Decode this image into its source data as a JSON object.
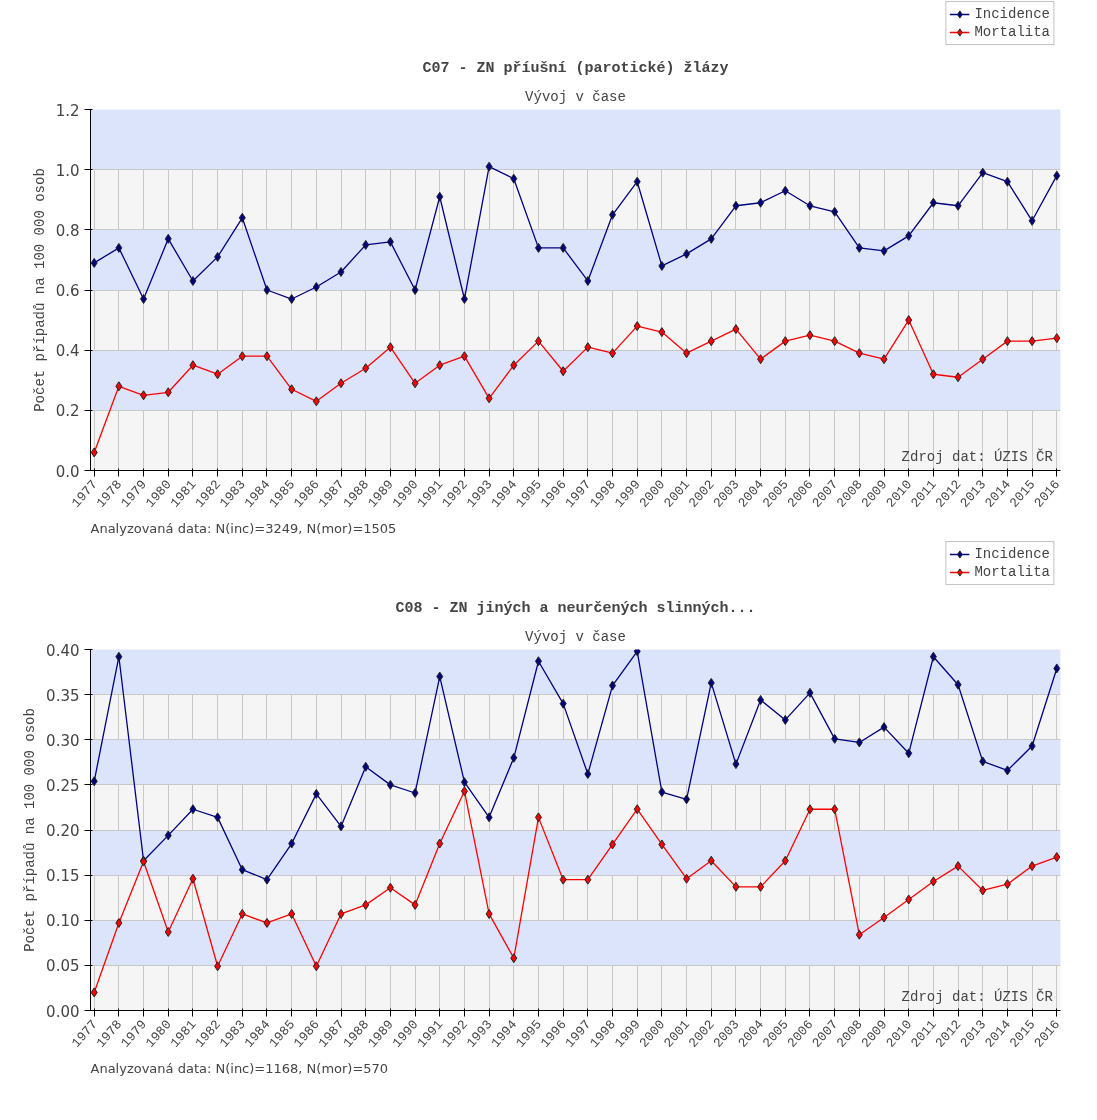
{
  "chart_data": [
    {
      "type": "line",
      "title": "C07 - ZN příušní (parotické) žlázy",
      "subtitle": "Vývoj v čase",
      "ylabel": "Počet případů na 100 000 osob",
      "categories": [
        "1977",
        "1978",
        "1979",
        "1980",
        "1981",
        "1982",
        "1983",
        "1984",
        "1985",
        "1986",
        "1987",
        "1988",
        "1989",
        "1990",
        "1991",
        "1992",
        "1993",
        "1994",
        "1995",
        "1996",
        "1997",
        "1998",
        "1999",
        "2000",
        "2001",
        "2002",
        "2003",
        "2004",
        "2005",
        "2006",
        "2007",
        "2008",
        "2009",
        "2010",
        "2011",
        "2012",
        "2013",
        "2014",
        "2015",
        "2016"
      ],
      "series": [
        {
          "name": "Incidence",
          "color": "#000080",
          "values": [
            0.69,
            0.74,
            0.57,
            0.77,
            0.63,
            0.71,
            0.84,
            0.6,
            0.57,
            0.61,
            0.66,
            0.75,
            0.76,
            0.6,
            0.91,
            0.57,
            1.01,
            0.97,
            0.74,
            0.74,
            0.63,
            0.85,
            0.96,
            0.68,
            0.72,
            0.77,
            0.88,
            0.89,
            0.93,
            0.88,
            0.86,
            0.74,
            0.73,
            0.78,
            0.89,
            0.88,
            0.99,
            0.96,
            0.83,
            0.98
          ]
        },
        {
          "name": "Mortalita",
          "color": "#ff0000",
          "values": [
            0.06,
            0.28,
            0.25,
            0.26,
            0.35,
            0.32,
            0.38,
            0.38,
            0.27,
            0.23,
            0.29,
            0.34,
            0.41,
            0.29,
            0.35,
            0.38,
            0.24,
            0.35,
            0.43,
            0.33,
            0.41,
            0.39,
            0.48,
            0.46,
            0.39,
            0.43,
            0.47,
            0.37,
            0.43,
            0.45,
            0.43,
            0.39,
            0.37,
            0.5,
            0.32,
            0.31,
            0.37,
            0.43,
            0.43,
            0.44
          ]
        }
      ],
      "ylim": [
        0,
        1.2
      ],
      "yticks": [
        {
          "value": 0,
          "label": "0.0"
        },
        0.2,
        0.4,
        0.6,
        0.8,
        {
          "value": 1,
          "label": "1.0"
        },
        1.2
      ],
      "grid": true,
      "legend": "top right",
      "marker": "diamond",
      "line_style": "solid",
      "annotations": [
        "Zdroj dat: ÚZIS ČR",
        "Analyzovaná data: N(inc)=3249, N(mor)=1505"
      ]
    },
    {
      "type": "line",
      "title": "C08 - ZN jiných a neurčených slinných...",
      "subtitle": "Vývoj v čase",
      "ylabel": "Počet případů na 100 000 osob",
      "categories": [
        "1977",
        "1978",
        "1979",
        "1980",
        "1981",
        "1982",
        "1983",
        "1984",
        "1985",
        "1986",
        "1987",
        "1988",
        "1989",
        "1990",
        "1991",
        "1992",
        "1993",
        "1994",
        "1995",
        "1996",
        "1997",
        "1998",
        "1999",
        "2000",
        "2001",
        "2002",
        "2003",
        "2004",
        "2005",
        "2006",
        "2007",
        "2008",
        "2009",
        "2010",
        "2011",
        "2012",
        "2013",
        "2014",
        "2015",
        "2016"
      ],
      "series": [
        {
          "name": "Incidence",
          "color": "#000080",
          "values": [
            0.254,
            0.392,
            0.166,
            0.194,
            0.223,
            0.214,
            0.156,
            0.145,
            0.185,
            0.24,
            0.204,
            0.27,
            0.25,
            0.241,
            0.37,
            0.253,
            0.214,
            0.28,
            0.387,
            0.34,
            0.262,
            0.36,
            0.398,
            0.242,
            0.234,
            0.363,
            0.273,
            0.344,
            0.322,
            0.352,
            0.301,
            0.297,
            0.314,
            0.285,
            0.392,
            0.361,
            0.276,
            0.266,
            0.293,
            0.379
          ]
        },
        {
          "name": "Mortalita",
          "color": "#ff0000",
          "values": [
            0.02,
            0.097,
            0.165,
            0.087,
            0.146,
            0.049,
            0.107,
            0.097,
            0.107,
            0.049,
            0.107,
            0.117,
            0.136,
            0.117,
            0.185,
            0.243,
            0.107,
            0.058,
            0.214,
            0.145,
            0.145,
            0.184,
            0.223,
            0.184,
            0.146,
            0.166,
            0.137,
            0.137,
            0.166,
            0.223,
            0.223,
            0.084,
            0.103,
            0.123,
            0.143,
            0.16,
            0.133,
            0.14,
            0.16,
            0.17
          ]
        }
      ],
      "ylim": [
        0,
        0.4
      ],
      "yticks": [
        {
          "value": 0,
          "label": "0.00"
        },
        0.05,
        {
          "value": 0.1,
          "label": "0.10"
        },
        0.15,
        {
          "value": 0.2,
          "label": "0.20"
        },
        0.25,
        {
          "value": 0.3,
          "label": "0.30"
        },
        0.35,
        {
          "value": 0.4,
          "label": "0.40"
        }
      ],
      "grid": true,
      "legend": "top right",
      "marker": "diamond",
      "line_style": "solid",
      "annotations": [
        "Zdroj dat: ÚZIS ČR",
        "Analyzovaná data: N(inc)=1168, N(mor)=570"
      ]
    }
  ]
}
